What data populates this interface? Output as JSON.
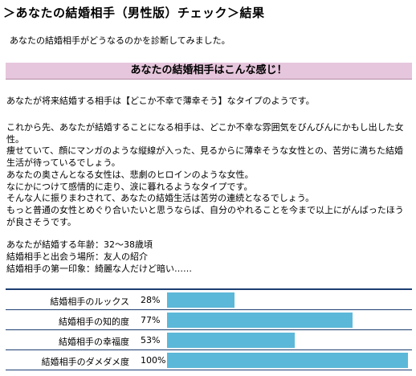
{
  "header": {
    "title": "＞あなたの結婚相手（男性版）チェック＞結果"
  },
  "intro": "あなたの結婚相手がどうなるのかを診断してみました。",
  "banner": "あなたの結婚相手はこんな感じ！",
  "summary": "あなたが将来結婚する相手は【どこか不幸で薄幸そう】なタイプのようです。",
  "detail_lines": [
    "これから先、あなたが結婚することになる相手は、どこか不幸な雰囲気をびんびんにかもし出した女",
    "性。",
    "痩せていて、顔にマンガのような縦線が入った、見るからに薄幸そうな女性との、苦労に満ちた結婚",
    "生活が待っているでしょう。",
    "あなたの奥さんとなる女性は、悲劇のヒロインのような女性。",
    "なにかにつけて感情的に走り、涙に暮れるようなタイプです。",
    "そんな人に振りまわされて、あなたの結婚生活は苦労の連続となるでしょう。",
    "もっと普通の女性とめぐり合いたいと思うならば、自分のやれることを今まで以上にがんばったほう",
    "が良さそうです。"
  ],
  "facts": [
    "あなたが結婚する年齢：32〜38歳頃",
    "結婚相手と出会う場所：友人の紹介",
    "結婚相手の第一印象：綺麗な人だけど暗い……"
  ],
  "meters": [
    {
      "label": "結婚相手のルックス",
      "percent_text": "28%",
      "value": 28
    },
    {
      "label": "結婚相手の知的度",
      "percent_text": "77%",
      "value": 77
    },
    {
      "label": "結婚相手の幸福度",
      "percent_text": "53%",
      "value": 53
    },
    {
      "label": "結婚相手のダメダメ度",
      "percent_text": "100%",
      "value": 100
    }
  ],
  "colors": {
    "banner": "#e6c6dc",
    "bar": "#5cb8d8",
    "rule": "#1c3f72"
  }
}
